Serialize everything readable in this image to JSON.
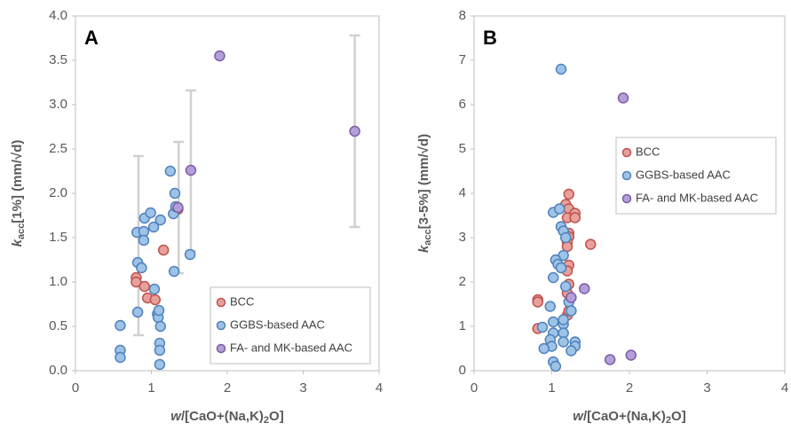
{
  "chart_data": [
    {
      "type": "scatter",
      "panel_label": "A",
      "x_label": {
        "main": "w",
        "rest": "/[CaO+(Na,K)",
        "sub": "2",
        "end": "O]"
      },
      "y_label": {
        "main": "k",
        "sub": "acc",
        "rest": "[1%] (mm/√d)"
      },
      "xlim": [
        0,
        4
      ],
      "xticks": [
        0,
        1,
        2,
        3,
        4
      ],
      "ylim": [
        0,
        4
      ],
      "yticks": [
        {
          "value": 0,
          "label": "0.0"
        },
        {
          "value": 0.5,
          "label": "0.5"
        },
        {
          "value": 1,
          "label": "1.0"
        },
        {
          "value": 1.5,
          "label": "1.5"
        },
        {
          "value": 2,
          "label": "2.0"
        },
        {
          "value": 2.5,
          "label": "2.5"
        },
        {
          "value": 3,
          "label": "3.0"
        },
        {
          "value": 3.5,
          "label": "3.5"
        },
        {
          "value": 4,
          "label": "4.0"
        }
      ],
      "legend": "lower right",
      "error_bar_color": "#d0d0d0",
      "error_bars": [
        {
          "x": 0.83,
          "low": 0.4,
          "high": 2.42
        },
        {
          "x": 1.36,
          "low": 1.1,
          "high": 2.58
        },
        {
          "x": 1.52,
          "low": 1.35,
          "high": 3.16
        },
        {
          "x": 3.68,
          "low": 1.62,
          "high": 3.78
        }
      ],
      "series": [
        {
          "name": "BCC",
          "color": "#e6a19b",
          "edge": "#c0504d",
          "x": [
            0.8,
            0.8,
            0.91,
            0.95,
            1.05,
            1.16,
            1.35
          ],
          "values": [
            1.05,
            1.0,
            0.95,
            0.82,
            0.8,
            1.36,
            1.82
          ]
        },
        {
          "name": "GGBS-based AAC",
          "color": "#9dc3e6",
          "edge": "#4f81bd",
          "x": [
            0.59,
            0.59,
            0.59,
            0.82,
            0.82,
            0.87,
            0.81,
            0.9,
            0.9,
            0.91,
            0.99,
            1.03,
            1.04,
            1.08,
            1.09,
            1.1,
            1.12,
            1.11,
            1.11,
            1.11,
            1.12,
            1.25,
            1.31,
            1.29,
            1.32,
            1.3,
            1.51
          ],
          "values": [
            0.51,
            0.23,
            0.15,
            0.66,
            1.22,
            1.16,
            1.56,
            1.57,
            1.47,
            1.72,
            1.78,
            1.62,
            0.92,
            0.64,
            0.6,
            0.68,
            0.5,
            0.31,
            0.23,
            0.07,
            1.7,
            2.25,
            2.0,
            1.77,
            1.85,
            1.12,
            1.31
          ]
        },
        {
          "name": "FA- and MK-based AAC",
          "color": "#b4a0d8",
          "edge": "#7d5ba6",
          "x": [
            1.9,
            1.52,
            1.35,
            3.68
          ],
          "values": [
            3.55,
            2.26,
            1.84,
            2.7
          ]
        }
      ]
    },
    {
      "type": "scatter",
      "panel_label": "B",
      "x_label": {
        "main": "w",
        "rest": "/[CaO+(Na,K)",
        "sub": "2",
        "end": "O]"
      },
      "y_label": {
        "main": "k",
        "sub": "acc",
        "rest": "[3-5%] (mm/√d)"
      },
      "xlim": [
        0,
        4
      ],
      "xticks": [
        0,
        1,
        2,
        3,
        4
      ],
      "ylim": [
        0,
        8
      ],
      "yticks": [
        0,
        1,
        2,
        3,
        4,
        5,
        6,
        7,
        8
      ],
      "legend": "center right",
      "series": [
        {
          "name": "BCC",
          "color": "#e6a19b",
          "edge": "#c0504d",
          "x": [
            1.22,
            1.18,
            1.22,
            1.2,
            1.3,
            1.3,
            1.22,
            1.22,
            1.2,
            1.2,
            1.5,
            1.22,
            1.2,
            1.22,
            1.2,
            1.2,
            1.22,
            0.82,
            0.82,
            0.82
          ],
          "values": [
            3.98,
            3.75,
            3.65,
            3.45,
            3.55,
            3.45,
            3.1,
            3.02,
            2.9,
            2.8,
            2.85,
            2.38,
            2.25,
            1.95,
            1.75,
            1.25,
            1.35,
            1.6,
            1.55,
            0.95
          ]
        },
        {
          "name": "GGBS-based AAC",
          "color": "#9dc3e6",
          "edge": "#4f81bd",
          "x": [
            1.12,
            1.02,
            1.1,
            1.12,
            1.15,
            1.18,
            1.15,
            1.05,
            1.08,
            1.12,
            1.02,
            1.18,
            0.98,
            1.02,
            1.15,
            1.15,
            1.22,
            1.25,
            1.15,
            1.02,
            0.98,
            1.0,
            1.15,
            1.3,
            1.3,
            1.25,
            0.9,
            0.88,
            1.02,
            1.05
          ],
          "values": [
            6.8,
            3.57,
            3.65,
            3.25,
            3.15,
            3.0,
            2.6,
            2.5,
            2.4,
            2.32,
            2.1,
            1.9,
            1.45,
            1.1,
            1.05,
            1.15,
            1.55,
            1.35,
            0.85,
            0.85,
            0.7,
            0.55,
            0.65,
            0.65,
            0.55,
            0.45,
            0.5,
            0.98,
            0.2,
            0.1
          ]
        },
        {
          "name": "FA- and MK-based AAC",
          "color": "#b4a0d8",
          "edge": "#7d5ba6",
          "x": [
            1.92,
            1.42,
            1.25,
            1.75,
            2.02
          ],
          "values": [
            6.15,
            1.85,
            1.65,
            0.25,
            0.35
          ]
        }
      ]
    }
  ]
}
